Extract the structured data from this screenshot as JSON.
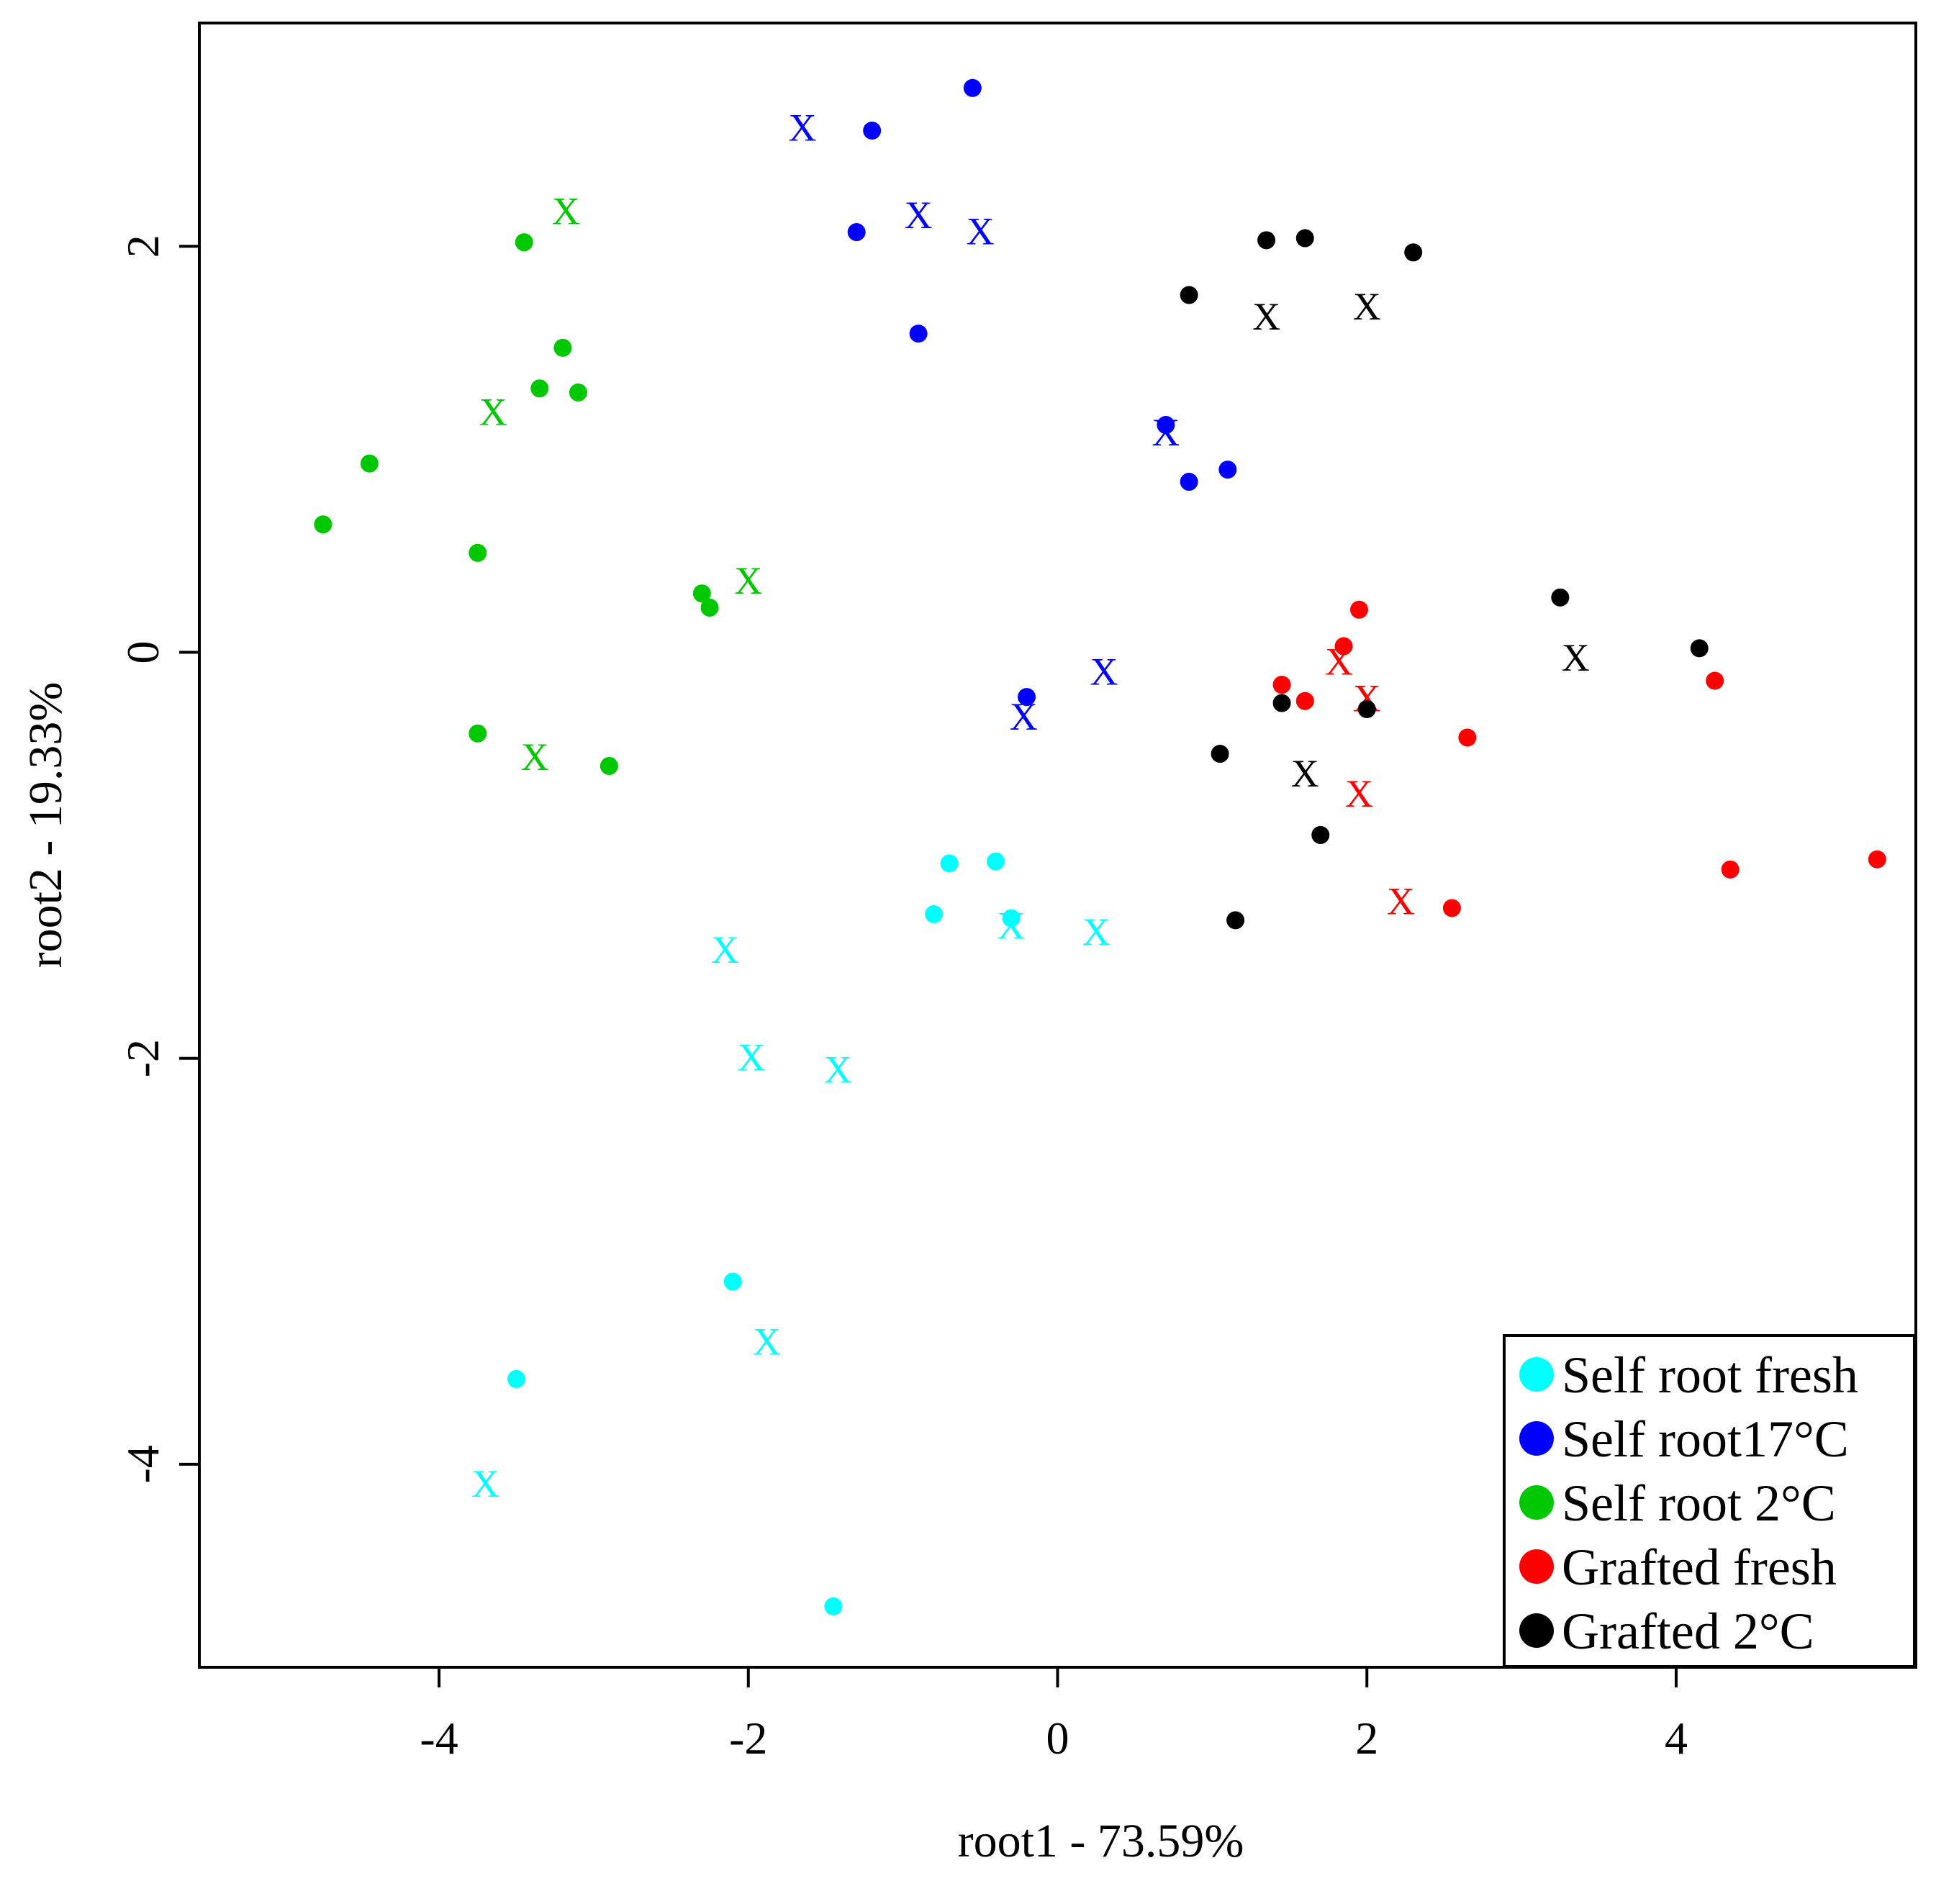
{
  "chart_data": {
    "type": "scatter",
    "title": "",
    "xlabel": "root1 - 73.59%",
    "ylabel": "root2 - 19.33%",
    "xlim": [
      -5.55,
      5.55
    ],
    "ylim": [
      -5.0,
      3.1
    ],
    "xticks": [
      -4,
      -2,
      0,
      2,
      4
    ],
    "yticks": [
      -4,
      -2,
      0,
      2
    ],
    "xtick_labels": [
      "-4",
      "-2",
      "0",
      "2",
      "4"
    ],
    "ytick_labels": [
      "-4",
      "-2",
      "0",
      "2"
    ],
    "grid": false,
    "legend_position": "bottom-right",
    "marker_types": {
      "dot": "filled circle",
      "x": "x"
    },
    "series": [
      {
        "name": "Self root fresh",
        "color": "#00ffff",
        "dots": [
          [
            -0.8,
            -1.29
          ],
          [
            -0.7,
            -1.04
          ],
          [
            -0.4,
            -1.03
          ],
          [
            -0.3,
            -1.31
          ],
          [
            -2.1,
            -3.1
          ],
          [
            -3.5,
            -3.58
          ],
          [
            -1.45,
            -4.7
          ]
        ],
        "x": [
          [
            -0.3,
            -1.35
          ],
          [
            0.25,
            -1.38
          ],
          [
            -2.15,
            -1.47
          ],
          [
            -1.98,
            -2.0
          ],
          [
            -1.42,
            -2.06
          ],
          [
            -1.88,
            -3.4
          ],
          [
            -3.7,
            -4.1
          ]
        ]
      },
      {
        "name": "Self root17°C",
        "color": "#0000ff",
        "dots": [
          [
            -0.55,
            2.78
          ],
          [
            -1.2,
            2.57
          ],
          [
            -1.3,
            2.07
          ],
          [
            -0.9,
            1.57
          ],
          [
            0.7,
            1.12
          ],
          [
            0.85,
            0.84
          ],
          [
            1.1,
            0.9
          ],
          [
            -0.2,
            -0.22
          ]
        ],
        "x": [
          [
            -1.65,
            2.58
          ],
          [
            -0.9,
            2.15
          ],
          [
            -0.5,
            2.07
          ],
          [
            0.7,
            1.08
          ],
          [
            0.3,
            -0.1
          ],
          [
            -0.22,
            -0.32
          ]
        ]
      },
      {
        "name": "Self root 2°C",
        "color": "#00c800",
        "dots": [
          [
            -3.45,
            2.02
          ],
          [
            -3.2,
            1.5
          ],
          [
            -3.35,
            1.3
          ],
          [
            -3.1,
            1.28
          ],
          [
            -4.45,
            0.93
          ],
          [
            -4.75,
            0.63
          ],
          [
            -3.75,
            0.49
          ],
          [
            -2.3,
            0.29
          ],
          [
            -2.25,
            0.22
          ],
          [
            -3.75,
            -0.4
          ],
          [
            -2.9,
            -0.56
          ]
        ],
        "x": [
          [
            -3.18,
            2.17
          ],
          [
            -3.65,
            1.18
          ],
          [
            -2.0,
            0.35
          ],
          [
            -3.38,
            -0.52
          ]
        ]
      },
      {
        "name": "Grafted fresh",
        "color": "#ff0000",
        "dots": [
          [
            1.95,
            0.21
          ],
          [
            1.85,
            0.03
          ],
          [
            1.45,
            -0.16
          ],
          [
            1.6,
            -0.24
          ],
          [
            2.65,
            -0.42
          ],
          [
            4.25,
            -0.14
          ],
          [
            2.55,
            -1.26
          ],
          [
            4.35,
            -1.07
          ],
          [
            5.3,
            -1.02
          ]
        ],
        "x": [
          [
            1.82,
            -0.05
          ],
          [
            2.0,
            -0.23
          ],
          [
            1.95,
            -0.7
          ],
          [
            2.22,
            -1.23
          ]
        ]
      },
      {
        "name": "Grafted 2°C",
        "color": "#000000",
        "dots": [
          [
            1.35,
            2.03
          ],
          [
            1.6,
            2.04
          ],
          [
            2.3,
            1.97
          ],
          [
            0.85,
            1.76
          ],
          [
            3.25,
            0.27
          ],
          [
            4.15,
            0.02
          ],
          [
            1.45,
            -0.25
          ],
          [
            2.0,
            -0.28
          ],
          [
            1.05,
            -0.5
          ],
          [
            1.7,
            -0.9
          ],
          [
            1.15,
            -1.32
          ]
        ],
        "x": [
          [
            1.35,
            1.65
          ],
          [
            2.0,
            1.7
          ],
          [
            3.35,
            -0.03
          ],
          [
            1.6,
            -0.6
          ]
        ]
      }
    ]
  }
}
